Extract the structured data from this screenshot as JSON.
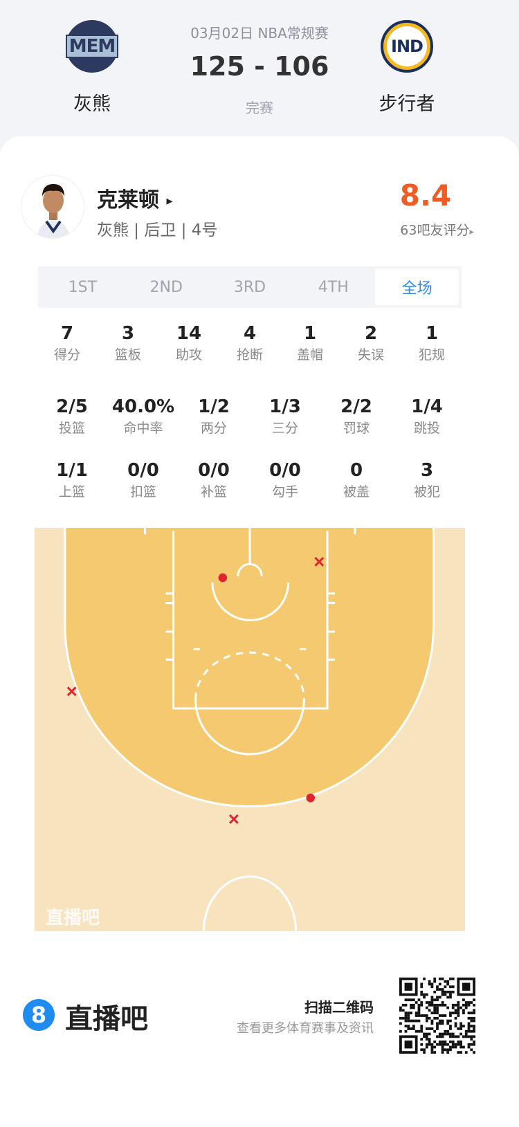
{
  "match": {
    "date_league": "03月02日 NBA常规赛",
    "score": "125 - 106",
    "status": "完赛",
    "home": {
      "abbr": "MEM",
      "name": "灰熊"
    },
    "away": {
      "abbr": "IND",
      "name": "步行者"
    }
  },
  "player": {
    "name": "克莱顿",
    "arrow": "▸",
    "info": "灰熊 | 后卫 | 4号",
    "rating": "8.4",
    "rating_label": "63吧友评分",
    "rating_arrow": "▸",
    "rating_color": "#f15a22"
  },
  "tabs": [
    {
      "label": "1ST"
    },
    {
      "label": "2ND"
    },
    {
      "label": "3RD"
    },
    {
      "label": "4TH"
    },
    {
      "label": "全场",
      "active": true
    }
  ],
  "stats_row1": [
    {
      "v": "7",
      "l": "得分"
    },
    {
      "v": "3",
      "l": "篮板"
    },
    {
      "v": "14",
      "l": "助攻"
    },
    {
      "v": "4",
      "l": "抢断"
    },
    {
      "v": "1",
      "l": "盖帽"
    },
    {
      "v": "2",
      "l": "失误"
    },
    {
      "v": "1",
      "l": "犯规"
    }
  ],
  "stats_row2": [
    {
      "v": "2/5",
      "l": "投篮"
    },
    {
      "v": "40.0%",
      "l": "命中率"
    },
    {
      "v": "1/2",
      "l": "两分"
    },
    {
      "v": "1/3",
      "l": "三分"
    },
    {
      "v": "2/2",
      "l": "罚球"
    },
    {
      "v": "1/4",
      "l": "跳投"
    }
  ],
  "stats_row3": [
    {
      "v": "1/1",
      "l": "上篮"
    },
    {
      "v": "0/0",
      "l": "扣篮"
    },
    {
      "v": "0/0",
      "l": "补篮"
    },
    {
      "v": "0/0",
      "l": "勾手"
    },
    {
      "v": "0",
      "l": "被盖"
    },
    {
      "v": "3",
      "l": "被犯"
    }
  ],
  "shot_chart": {
    "watermark": "直播吧",
    "shots": [
      {
        "result": "miss"
      },
      {
        "result": "made"
      },
      {
        "result": "miss"
      },
      {
        "result": "made"
      },
      {
        "result": "miss"
      }
    ],
    "made_color": "#e0242f",
    "miss_color": "#e0242f"
  },
  "footer": {
    "brand_number": "8",
    "brand": "直播吧",
    "scan": "扫描二维码",
    "sub": "查看更多体育赛事及资讯",
    "brand_color": "#1e8cf0"
  }
}
